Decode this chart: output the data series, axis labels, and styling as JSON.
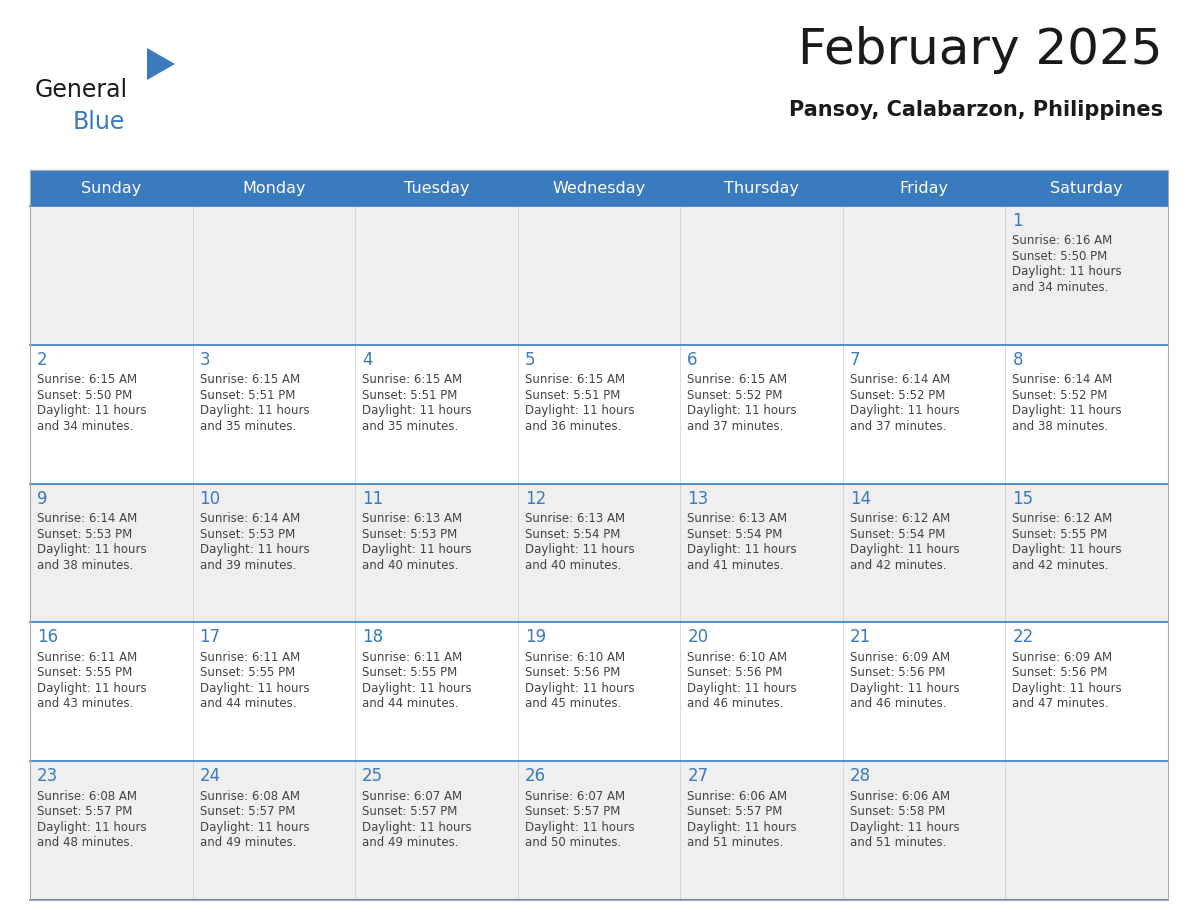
{
  "title": "February 2025",
  "subtitle": "Pansoy, Calabarzon, Philippines",
  "header_bg": "#3a7abf",
  "header_text": "#ffffff",
  "day_names": [
    "Sunday",
    "Monday",
    "Tuesday",
    "Wednesday",
    "Thursday",
    "Friday",
    "Saturday"
  ],
  "cell_border_color": "#3a7abf",
  "number_color": "#3a7abf",
  "text_color": "#444444",
  "row_bg_alt": "#efefef",
  "row_bg_main": "#ffffff",
  "days": [
    {
      "day": 1,
      "col": 6,
      "row": 0,
      "sunrise": "6:16 AM",
      "sunset": "5:50 PM",
      "daylight_h": "11 hours",
      "daylight_m": "34 minutes."
    },
    {
      "day": 2,
      "col": 0,
      "row": 1,
      "sunrise": "6:15 AM",
      "sunset": "5:50 PM",
      "daylight_h": "11 hours",
      "daylight_m": "34 minutes."
    },
    {
      "day": 3,
      "col": 1,
      "row": 1,
      "sunrise": "6:15 AM",
      "sunset": "5:51 PM",
      "daylight_h": "11 hours",
      "daylight_m": "35 minutes."
    },
    {
      "day": 4,
      "col": 2,
      "row": 1,
      "sunrise": "6:15 AM",
      "sunset": "5:51 PM",
      "daylight_h": "11 hours",
      "daylight_m": "35 minutes."
    },
    {
      "day": 5,
      "col": 3,
      "row": 1,
      "sunrise": "6:15 AM",
      "sunset": "5:51 PM",
      "daylight_h": "11 hours",
      "daylight_m": "36 minutes."
    },
    {
      "day": 6,
      "col": 4,
      "row": 1,
      "sunrise": "6:15 AM",
      "sunset": "5:52 PM",
      "daylight_h": "11 hours",
      "daylight_m": "37 minutes."
    },
    {
      "day": 7,
      "col": 5,
      "row": 1,
      "sunrise": "6:14 AM",
      "sunset": "5:52 PM",
      "daylight_h": "11 hours",
      "daylight_m": "37 minutes."
    },
    {
      "day": 8,
      "col": 6,
      "row": 1,
      "sunrise": "6:14 AM",
      "sunset": "5:52 PM",
      "daylight_h": "11 hours",
      "daylight_m": "38 minutes."
    },
    {
      "day": 9,
      "col": 0,
      "row": 2,
      "sunrise": "6:14 AM",
      "sunset": "5:53 PM",
      "daylight_h": "11 hours",
      "daylight_m": "38 minutes."
    },
    {
      "day": 10,
      "col": 1,
      "row": 2,
      "sunrise": "6:14 AM",
      "sunset": "5:53 PM",
      "daylight_h": "11 hours",
      "daylight_m": "39 minutes."
    },
    {
      "day": 11,
      "col": 2,
      "row": 2,
      "sunrise": "6:13 AM",
      "sunset": "5:53 PM",
      "daylight_h": "11 hours",
      "daylight_m": "40 minutes."
    },
    {
      "day": 12,
      "col": 3,
      "row": 2,
      "sunrise": "6:13 AM",
      "sunset": "5:54 PM",
      "daylight_h": "11 hours",
      "daylight_m": "40 minutes."
    },
    {
      "day": 13,
      "col": 4,
      "row": 2,
      "sunrise": "6:13 AM",
      "sunset": "5:54 PM",
      "daylight_h": "11 hours",
      "daylight_m": "41 minutes."
    },
    {
      "day": 14,
      "col": 5,
      "row": 2,
      "sunrise": "6:12 AM",
      "sunset": "5:54 PM",
      "daylight_h": "11 hours",
      "daylight_m": "42 minutes."
    },
    {
      "day": 15,
      "col": 6,
      "row": 2,
      "sunrise": "6:12 AM",
      "sunset": "5:55 PM",
      "daylight_h": "11 hours",
      "daylight_m": "42 minutes."
    },
    {
      "day": 16,
      "col": 0,
      "row": 3,
      "sunrise": "6:11 AM",
      "sunset": "5:55 PM",
      "daylight_h": "11 hours",
      "daylight_m": "43 minutes."
    },
    {
      "day": 17,
      "col": 1,
      "row": 3,
      "sunrise": "6:11 AM",
      "sunset": "5:55 PM",
      "daylight_h": "11 hours",
      "daylight_m": "44 minutes."
    },
    {
      "day": 18,
      "col": 2,
      "row": 3,
      "sunrise": "6:11 AM",
      "sunset": "5:55 PM",
      "daylight_h": "11 hours",
      "daylight_m": "44 minutes."
    },
    {
      "day": 19,
      "col": 3,
      "row": 3,
      "sunrise": "6:10 AM",
      "sunset": "5:56 PM",
      "daylight_h": "11 hours",
      "daylight_m": "45 minutes."
    },
    {
      "day": 20,
      "col": 4,
      "row": 3,
      "sunrise": "6:10 AM",
      "sunset": "5:56 PM",
      "daylight_h": "11 hours",
      "daylight_m": "46 minutes."
    },
    {
      "day": 21,
      "col": 5,
      "row": 3,
      "sunrise": "6:09 AM",
      "sunset": "5:56 PM",
      "daylight_h": "11 hours",
      "daylight_m": "46 minutes."
    },
    {
      "day": 22,
      "col": 6,
      "row": 3,
      "sunrise": "6:09 AM",
      "sunset": "5:56 PM",
      "daylight_h": "11 hours",
      "daylight_m": "47 minutes."
    },
    {
      "day": 23,
      "col": 0,
      "row": 4,
      "sunrise": "6:08 AM",
      "sunset": "5:57 PM",
      "daylight_h": "11 hours",
      "daylight_m": "48 minutes."
    },
    {
      "day": 24,
      "col": 1,
      "row": 4,
      "sunrise": "6:08 AM",
      "sunset": "5:57 PM",
      "daylight_h": "11 hours",
      "daylight_m": "49 minutes."
    },
    {
      "day": 25,
      "col": 2,
      "row": 4,
      "sunrise": "6:07 AM",
      "sunset": "5:57 PM",
      "daylight_h": "11 hours",
      "daylight_m": "49 minutes."
    },
    {
      "day": 26,
      "col": 3,
      "row": 4,
      "sunrise": "6:07 AM",
      "sunset": "5:57 PM",
      "daylight_h": "11 hours",
      "daylight_m": "50 minutes."
    },
    {
      "day": 27,
      "col": 4,
      "row": 4,
      "sunrise": "6:06 AM",
      "sunset": "5:57 PM",
      "daylight_h": "11 hours",
      "daylight_m": "51 minutes."
    },
    {
      "day": 28,
      "col": 5,
      "row": 4,
      "sunrise": "6:06 AM",
      "sunset": "5:58 PM",
      "daylight_h": "11 hours",
      "daylight_m": "51 minutes."
    }
  ],
  "num_rows": 5,
  "num_cols": 7,
  "title_fontsize": 36,
  "subtitle_fontsize": 15,
  "header_fontsize": 11.5,
  "day_num_fontsize": 12,
  "cell_text_fontsize": 8.5,
  "logo_general_fontsize": 17,
  "logo_blue_fontsize": 17
}
